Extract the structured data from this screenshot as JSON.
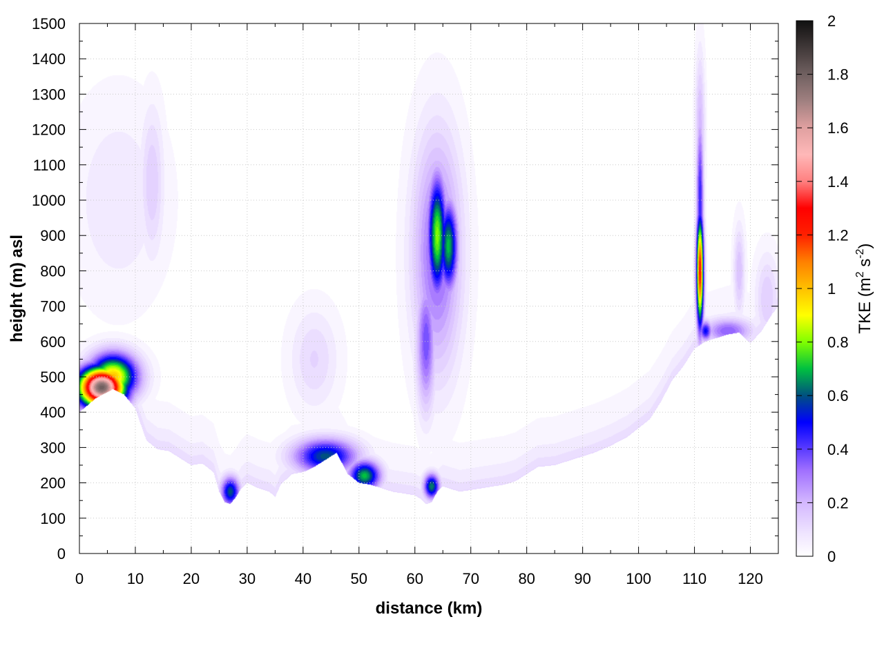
{
  "chart_data": {
    "type": "heatmap",
    "xlabel": "distance (km)",
    "ylabel": "height (m) asl",
    "xlim": [
      0,
      125
    ],
    "ylim": [
      0,
      1500
    ],
    "xticks": [
      "0",
      "10",
      "20",
      "30",
      "40",
      "50",
      "60",
      "70",
      "80",
      "90",
      "100",
      "110",
      "120"
    ],
    "yticks": [
      "0",
      "100",
      "200",
      "300",
      "400",
      "500",
      "600",
      "700",
      "800",
      "900",
      "1000",
      "1100",
      "1200",
      "1300",
      "1400",
      "1500"
    ],
    "grid": true,
    "colorbar": {
      "label_main": "TKE (m",
      "label_sup1": "2",
      "label_mid": " s",
      "label_sup2": "-2",
      "label_end": ")",
      "range": [
        0,
        2
      ],
      "ticks": [
        "0",
        "0.2",
        "0.4",
        "0.6",
        "0.8",
        "1",
        "1.2",
        "1.4",
        "1.6",
        "1.8",
        "2"
      ],
      "colormap": [
        [
          0.0,
          "#ffffff"
        ],
        [
          0.04,
          "#f0e6ff"
        ],
        [
          0.1,
          "#d4b8ff"
        ],
        [
          0.16,
          "#a070ff"
        ],
        [
          0.2,
          "#5b3cff"
        ],
        [
          0.25,
          "#0000ff"
        ],
        [
          0.3,
          "#005080"
        ],
        [
          0.35,
          "#00c040"
        ],
        [
          0.4,
          "#80ff00"
        ],
        [
          0.45,
          "#ffff00"
        ],
        [
          0.5,
          "#ffc000"
        ],
        [
          0.55,
          "#ff8000"
        ],
        [
          0.6,
          "#ff2000"
        ],
        [
          0.65,
          "#ff0000"
        ],
        [
          0.7,
          "#ff8080"
        ],
        [
          0.75,
          "#ffb8b8"
        ],
        [
          0.8,
          "#e0a0a0"
        ],
        [
          0.85,
          "#a08080"
        ],
        [
          0.9,
          "#706060"
        ],
        [
          0.95,
          "#403838"
        ],
        [
          1.0,
          "#101010"
        ]
      ]
    },
    "terrain": {
      "x": [
        0,
        3,
        6,
        8,
        10,
        12,
        14,
        16,
        18,
        20,
        22,
        24,
        25,
        26,
        27,
        28,
        29,
        30,
        32,
        34,
        35,
        36,
        38,
        40,
        42,
        44,
        46,
        48,
        50,
        52,
        54,
        56,
        58,
        60,
        61,
        62,
        63,
        64,
        65,
        66,
        68,
        70,
        72,
        74,
        76,
        78,
        80,
        82,
        85,
        88,
        90,
        92,
        95,
        98,
        100,
        102,
        104,
        106,
        108,
        110,
        112,
        114,
        116,
        118,
        119,
        120,
        122,
        124,
        125
      ],
      "y": [
        400,
        440,
        465,
        450,
        410,
        320,
        295,
        290,
        270,
        250,
        255,
        230,
        175,
        145,
        140,
        160,
        185,
        200,
        185,
        175,
        160,
        195,
        225,
        230,
        245,
        265,
        285,
        225,
        200,
        195,
        185,
        175,
        170,
        165,
        155,
        140,
        145,
        175,
        190,
        185,
        175,
        180,
        185,
        190,
        195,
        205,
        225,
        245,
        250,
        265,
        275,
        285,
        305,
        330,
        355,
        380,
        430,
        490,
        530,
        580,
        600,
        610,
        620,
        625,
        610,
        595,
        630,
        680,
        700
      ]
    },
    "blobs": [
      {
        "cx": 4,
        "cy": 470,
        "sx": 3,
        "sy": 40,
        "v": 1.8
      },
      {
        "cx": 6,
        "cy": 500,
        "sx": 3,
        "sy": 45,
        "v": 1.0
      },
      {
        "cx": 7,
        "cy": 1000,
        "sx": 6,
        "sy": 200,
        "v": 0.08
      },
      {
        "cx": 13,
        "cy": 1050,
        "sx": 1.5,
        "sy": 150,
        "v": 0.15
      },
      {
        "cx": 27,
        "cy": 175,
        "sx": 1.2,
        "sy": 30,
        "v": 0.6
      },
      {
        "cx": 44,
        "cy": 275,
        "sx": 4,
        "sy": 35,
        "v": 0.6
      },
      {
        "cx": 51,
        "cy": 220,
        "sx": 2,
        "sy": 30,
        "v": 0.7
      },
      {
        "cx": 42,
        "cy": 550,
        "sx": 3,
        "sy": 100,
        "v": 0.12
      },
      {
        "cx": 64,
        "cy": 900,
        "sx": 1.2,
        "sy": 120,
        "v": 0.8
      },
      {
        "cx": 66,
        "cy": 870,
        "sx": 1.2,
        "sy": 90,
        "v": 0.7
      },
      {
        "cx": 64,
        "cy": 850,
        "sx": 3,
        "sy": 230,
        "v": 0.35
      },
      {
        "cx": 62,
        "cy": 600,
        "sx": 1.2,
        "sy": 130,
        "v": 0.38
      },
      {
        "cx": 63,
        "cy": 190,
        "sx": 1,
        "sy": 25,
        "v": 0.65
      },
      {
        "cx": 111,
        "cy": 800,
        "sx": 0.45,
        "sy": 110,
        "v": 1.25
      },
      {
        "cx": 111,
        "cy": 1000,
        "sx": 0.45,
        "sy": 170,
        "v": 0.45
      },
      {
        "cx": 111,
        "cy": 1200,
        "sx": 0.6,
        "sy": 150,
        "v": 0.2
      },
      {
        "cx": 112,
        "cy": 630,
        "sx": 0.8,
        "sy": 20,
        "v": 0.5
      },
      {
        "cx": 116,
        "cy": 630,
        "sx": 3,
        "sy": 25,
        "v": 0.35
      },
      {
        "cx": 118,
        "cy": 800,
        "sx": 0.7,
        "sy": 90,
        "v": 0.18
      },
      {
        "cx": 123,
        "cy": 720,
        "sx": 1.5,
        "sy": 90,
        "v": 0.15
      }
    ]
  }
}
